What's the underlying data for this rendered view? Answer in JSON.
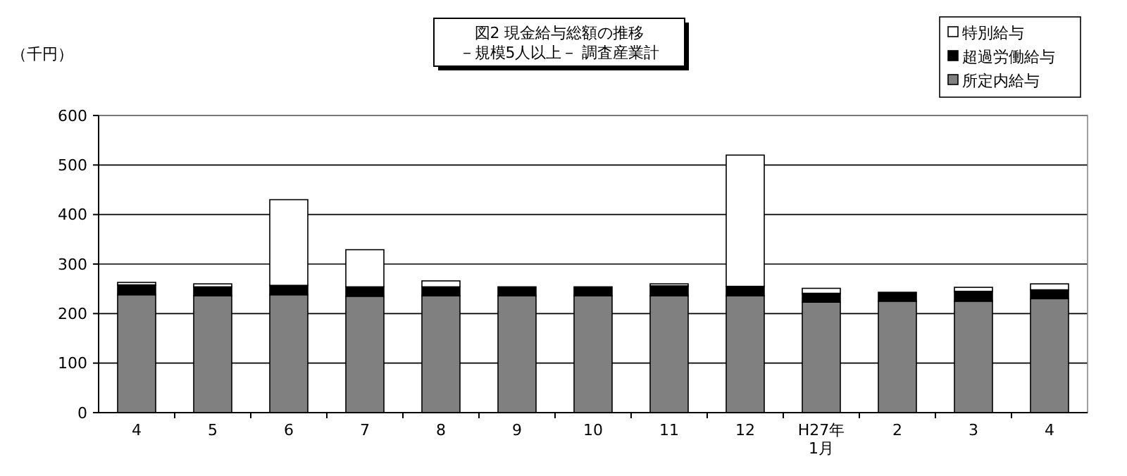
{
  "chart_data": {
    "type": "bar",
    "title": "図2  現金給与総額の推移",
    "subtitle": "－規模5人以上－  調査産業計",
    "ylabel": "（千円）",
    "categories": [
      "4",
      "5",
      "6",
      "7",
      "8",
      "9",
      "10",
      "11",
      "12",
      "H27年\n1月",
      "2",
      "3",
      "4"
    ],
    "stacked": true,
    "series": [
      {
        "name": "所定内給与",
        "color": "#808080",
        "values": [
          238,
          236,
          238,
          235,
          236,
          236,
          236,
          236,
          236,
          223,
          225,
          225,
          230
        ]
      },
      {
        "name": "超過労働給与",
        "color": "#000000",
        "values": [
          20,
          18,
          19,
          19,
          18,
          18,
          18,
          20,
          19,
          18,
          18,
          20,
          18
        ]
      },
      {
        "name": "特別給与",
        "color": "#ffffff",
        "values": [
          5,
          6,
          173,
          75,
          12,
          null,
          null,
          4,
          265,
          10,
          null,
          8,
          12
        ]
      }
    ],
    "ylim": [
      0,
      600
    ],
    "yticks": [
      0,
      100,
      200,
      300,
      400,
      500,
      600
    ],
    "grid": "y",
    "legend": "top right"
  }
}
